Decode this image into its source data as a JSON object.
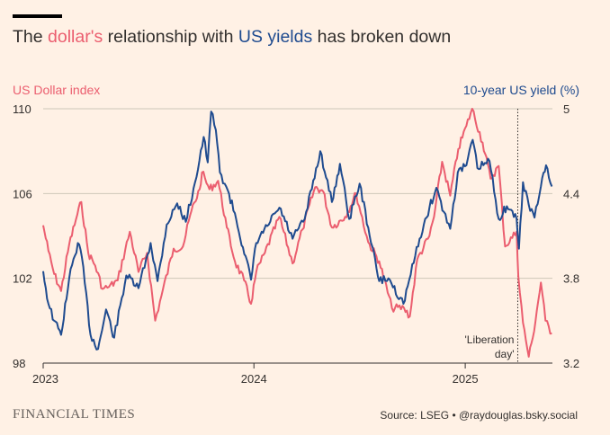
{
  "title": {
    "pre": "The ",
    "red": "dollar's",
    "mid": " relationship with ",
    "blue": "US yields",
    "post": " has broken down"
  },
  "colors": {
    "dollar": "#eb5e6f",
    "yield": "#1f4b8f",
    "background": "#fff1e5",
    "grid": "#cec6b9"
  },
  "chart_data": {
    "type": "line",
    "y_left_label": "US Dollar index",
    "y_right_label": "10-year US yield (%)",
    "y_left_range": [
      98,
      110
    ],
    "y_right_range": [
      3.2,
      5
    ],
    "y_left_ticks": [
      "110",
      "106",
      "102",
      "98"
    ],
    "y_right_ticks": [
      "5",
      "4.4",
      "3.8",
      "3.2"
    ],
    "x_range": [
      "2023-01-01",
      "2025-06-01"
    ],
    "x_ticks": [
      {
        "date": "2023-01-01",
        "label": "2023"
      },
      {
        "date": "2024-01-01",
        "label": "2024"
      },
      {
        "date": "2025-01-01",
        "label": "2025"
      }
    ],
    "grid": "horizontal",
    "annotation": {
      "date": "2025-04-02",
      "text_line1": "'Liberation",
      "text_line2": "day'"
    },
    "series": [
      {
        "name": "US Dollar index",
        "axis": "left",
        "color": "#eb5e6f",
        "points": [
          [
            "2023-01-01",
            104.5
          ],
          [
            "2023-01-10",
            103.3
          ],
          [
            "2023-01-20",
            102.2
          ],
          [
            "2023-02-01",
            101.4
          ],
          [
            "2023-02-15",
            103.6
          ],
          [
            "2023-03-01",
            105.0
          ],
          [
            "2023-03-08",
            105.6
          ],
          [
            "2023-03-20",
            103.2
          ],
          [
            "2023-04-01",
            102.6
          ],
          [
            "2023-04-14",
            101.5
          ],
          [
            "2023-04-25",
            101.6
          ],
          [
            "2023-05-10",
            101.9
          ],
          [
            "2023-05-31",
            104.2
          ],
          [
            "2023-06-15",
            102.3
          ],
          [
            "2023-06-30",
            103.2
          ],
          [
            "2023-07-14",
            100.0
          ],
          [
            "2023-07-25",
            101.2
          ],
          [
            "2023-08-15",
            103.4
          ],
          [
            "2023-08-31",
            103.5
          ],
          [
            "2023-09-15",
            105.2
          ],
          [
            "2023-09-29",
            106.2
          ],
          [
            "2023-10-03",
            107.0
          ],
          [
            "2023-10-16",
            106.2
          ],
          [
            "2023-10-31",
            106.6
          ],
          [
            "2023-11-15",
            104.4
          ],
          [
            "2023-11-29",
            102.8
          ],
          [
            "2023-12-15",
            101.9
          ],
          [
            "2023-12-27",
            100.8
          ],
          [
            "2024-01-05",
            102.3
          ],
          [
            "2024-01-20",
            103.2
          ],
          [
            "2024-02-14",
            104.9
          ],
          [
            "2024-03-08",
            102.7
          ],
          [
            "2024-03-25",
            104.3
          ],
          [
            "2024-04-16",
            106.3
          ],
          [
            "2024-04-30",
            106.1
          ],
          [
            "2024-05-15",
            104.4
          ],
          [
            "2024-06-07",
            104.9
          ],
          [
            "2024-06-26",
            106.0
          ],
          [
            "2024-07-17",
            103.7
          ],
          [
            "2024-08-05",
            102.8
          ],
          [
            "2024-08-27",
            100.6
          ],
          [
            "2024-09-17",
            100.6
          ],
          [
            "2024-09-27",
            100.2
          ],
          [
            "2024-10-10",
            102.9
          ],
          [
            "2024-10-31",
            104.0
          ],
          [
            "2024-11-08",
            104.9
          ],
          [
            "2024-11-22",
            107.5
          ],
          [
            "2024-12-06",
            105.9
          ],
          [
            "2024-12-20",
            108.1
          ],
          [
            "2025-01-03",
            109.2
          ],
          [
            "2025-01-13",
            110.0
          ],
          [
            "2025-01-31",
            108.4
          ],
          [
            "2025-02-14",
            106.7
          ],
          [
            "2025-02-28",
            107.3
          ],
          [
            "2025-03-11",
            103.5
          ],
          [
            "2025-03-31",
            104.2
          ],
          [
            "2025-04-03",
            102.1
          ],
          [
            "2025-04-11",
            99.9
          ],
          [
            "2025-04-21",
            98.3
          ],
          [
            "2025-04-28",
            99.2
          ],
          [
            "2025-05-12",
            101.8
          ],
          [
            "2025-05-20",
            100.0
          ],
          [
            "2025-05-31",
            99.4
          ]
        ]
      },
      {
        "name": "10-year US yield (%)",
        "axis": "right",
        "color": "#1f4b8f",
        "points": [
          [
            "2023-01-01",
            3.85
          ],
          [
            "2023-01-10",
            3.62
          ],
          [
            "2023-01-20",
            3.5
          ],
          [
            "2023-02-01",
            3.4
          ],
          [
            "2023-02-15",
            3.8
          ],
          [
            "2023-03-02",
            4.05
          ],
          [
            "2023-03-09",
            3.95
          ],
          [
            "2023-03-24",
            3.4
          ],
          [
            "2023-04-06",
            3.3
          ],
          [
            "2023-04-20",
            3.58
          ],
          [
            "2023-05-04",
            3.38
          ],
          [
            "2023-05-25",
            3.82
          ],
          [
            "2023-06-15",
            3.73
          ],
          [
            "2023-07-06",
            4.05
          ],
          [
            "2023-07-18",
            3.78
          ],
          [
            "2023-08-03",
            4.18
          ],
          [
            "2023-08-21",
            4.33
          ],
          [
            "2023-09-05",
            4.2
          ],
          [
            "2023-09-21",
            4.48
          ],
          [
            "2023-10-06",
            4.8
          ],
          [
            "2023-10-13",
            4.62
          ],
          [
            "2023-10-19",
            4.98
          ],
          [
            "2023-10-27",
            4.85
          ],
          [
            "2023-11-03",
            4.55
          ],
          [
            "2023-11-14",
            4.45
          ],
          [
            "2023-11-29",
            4.26
          ],
          [
            "2023-12-13",
            4.02
          ],
          [
            "2023-12-27",
            3.79
          ],
          [
            "2024-01-05",
            4.05
          ],
          [
            "2024-01-24",
            4.17
          ],
          [
            "2024-02-14",
            4.3
          ],
          [
            "2024-03-08",
            4.08
          ],
          [
            "2024-03-29",
            4.22
          ],
          [
            "2024-04-25",
            4.7
          ],
          [
            "2024-05-15",
            4.34
          ],
          [
            "2024-05-29",
            4.61
          ],
          [
            "2024-06-14",
            4.22
          ],
          [
            "2024-07-02",
            4.47
          ],
          [
            "2024-07-17",
            4.16
          ],
          [
            "2024-08-05",
            3.78
          ],
          [
            "2024-08-21",
            3.8
          ],
          [
            "2024-09-16",
            3.62
          ],
          [
            "2024-09-26",
            3.79
          ],
          [
            "2024-10-14",
            4.08
          ],
          [
            "2024-10-31",
            4.3
          ],
          [
            "2024-11-12",
            4.44
          ],
          [
            "2024-11-25",
            4.27
          ],
          [
            "2024-12-06",
            4.15
          ],
          [
            "2024-12-19",
            4.55
          ],
          [
            "2025-01-03",
            4.6
          ],
          [
            "2025-01-14",
            4.78
          ],
          [
            "2025-01-22",
            4.58
          ],
          [
            "2025-02-12",
            4.63
          ],
          [
            "2025-02-28",
            4.22
          ],
          [
            "2025-03-14",
            4.31
          ],
          [
            "2025-03-31",
            4.22
          ],
          [
            "2025-04-04",
            4.01
          ],
          [
            "2025-04-11",
            4.48
          ],
          [
            "2025-04-21",
            4.32
          ],
          [
            "2025-05-01",
            4.23
          ],
          [
            "2025-05-12",
            4.45
          ],
          [
            "2025-05-21",
            4.6
          ],
          [
            "2025-05-31",
            4.45
          ]
        ]
      }
    ]
  },
  "footer": {
    "logo": "FINANCIAL TIMES",
    "source": "Source: LSEG • @raydouglas.bsky.social"
  }
}
